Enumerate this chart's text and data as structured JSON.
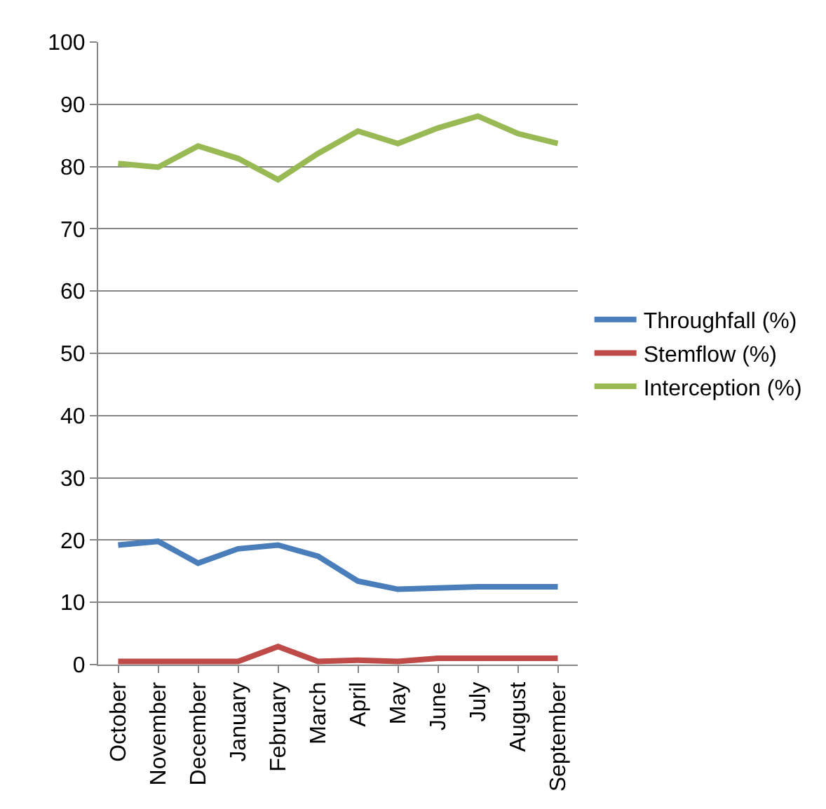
{
  "chart_data": {
    "type": "line",
    "categories": [
      "October",
      "November",
      "December",
      "January",
      "February",
      "March",
      "April",
      "May",
      "June",
      "July",
      "August",
      "September"
    ],
    "series": [
      {
        "name": "Throughfall (%)",
        "color": "#4a7ebb",
        "values": [
          19.2,
          19.8,
          16.3,
          18.6,
          19.2,
          17.4,
          13.4,
          12.1,
          12.3,
          12.5,
          12.5,
          12.5
        ]
      },
      {
        "name": "Stemflow (%)",
        "color": "#be4b48",
        "values": [
          0.5,
          0.5,
          0.5,
          0.5,
          2.9,
          0.5,
          0.7,
          0.5,
          1.0,
          1.0,
          1.0,
          1.0
        ]
      },
      {
        "name": "Interception (%)",
        "color": "#98b954",
        "values": [
          80.5,
          79.9,
          83.3,
          81.3,
          77.9,
          82.1,
          85.7,
          83.7,
          86.2,
          88.1,
          85.3,
          83.7
        ]
      }
    ],
    "ylim": [
      0,
      100
    ],
    "yticks": [
      0,
      10,
      20,
      30,
      40,
      50,
      60,
      70,
      80,
      90,
      100
    ],
    "grid": "y",
    "legend": "right",
    "marker": "none",
    "line_style": "solid"
  }
}
